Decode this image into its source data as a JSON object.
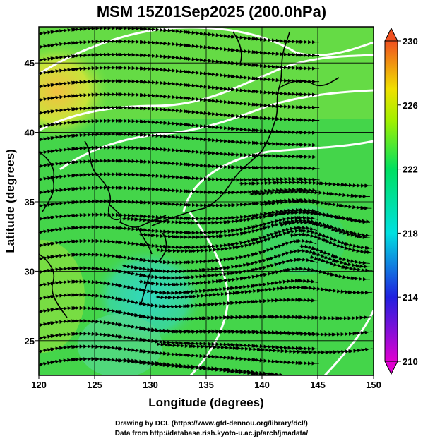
{
  "title": "MSM 15Z01Sep2025 (200.0hPa)",
  "xlabel": "Longitude (degrees)",
  "ylabel": "Latitude  (degrees)",
  "credits": [
    "Drawing by DCL (https://www.gfd-dennou.org/library/dcl/)",
    "Data from http://database.rish.kyoto-u.ac.jp/arch/jmadata/"
  ],
  "chart_data": {
    "type": "heatmap",
    "xlim": [
      120,
      150
    ],
    "ylim": [
      22.5,
      47.6
    ],
    "xticks": [
      "120",
      "125",
      "130",
      "135",
      "140",
      "145",
      "150"
    ],
    "yticks": [
      "25",
      "30",
      "35",
      "40",
      "45"
    ],
    "colorbar": {
      "range": [
        210,
        230
      ],
      "ticks": [
        "210",
        "214",
        "218",
        "222",
        "226",
        "230"
      ],
      "colors": [
        "#e000d0",
        "#2020e0",
        "#00e0e0",
        "#00e060",
        "#a0f000",
        "#f0e000",
        "#f05020"
      ]
    },
    "grid": true,
    "streamlines": true,
    "contour_color": "#ffffff"
  },
  "colors": {
    "field_main": "#44d54a",
    "field_warm": "#f0c040",
    "field_cool": "#3ad4b0",
    "streamline": "#000000"
  }
}
